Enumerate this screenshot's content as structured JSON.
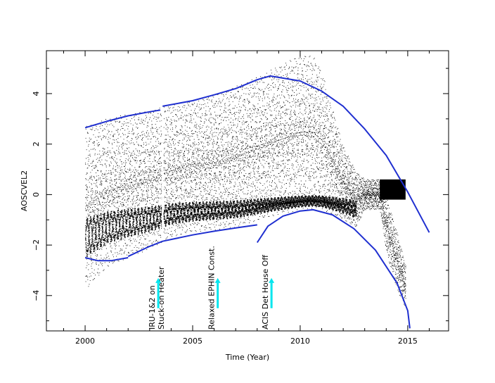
{
  "chart_data": {
    "type": "scatter",
    "title": "",
    "xlabel": "Time (Year)",
    "ylabel": "AOSCVEL2",
    "xlim": [
      1998.2,
      2016.9
    ],
    "ylim": [
      -5.4,
      5.7
    ],
    "xticks": [
      2000,
      2005,
      2010,
      2015
    ],
    "yticks": [
      -4,
      -2,
      0,
      2,
      4
    ],
    "grid": false,
    "legend": "none",
    "colors": {
      "points": "#000000",
      "fit_lines": "#1f2fd0",
      "markers": "#00e5ee",
      "gap": "#ffffff"
    },
    "scatter_envelope": [
      {
        "x": 2000.0,
        "upper": 2.7,
        "lower": -3.8
      },
      {
        "x": 2001.0,
        "upper": 3.0,
        "lower": -2.9
      },
      {
        "x": 2002.0,
        "upper": 3.2,
        "lower": -2.5
      },
      {
        "x": 2003.0,
        "upper": 3.35,
        "lower": -2.15
      },
      {
        "x": 2004.0,
        "upper": 3.55,
        "lower": -1.7
      },
      {
        "x": 2005.0,
        "upper": 3.75,
        "lower": -1.5
      },
      {
        "x": 2006.0,
        "upper": 3.95,
        "lower": -1.4
      },
      {
        "x": 2007.0,
        "upper": 4.3,
        "lower": -1.3
      },
      {
        "x": 2008.0,
        "upper": 4.65,
        "lower": -1.05
      },
      {
        "x": 2009.0,
        "upper": 5.1,
        "lower": -0.8
      },
      {
        "x": 2010.0,
        "upper": 5.55,
        "lower": -0.6
      },
      {
        "x": 2010.6,
        "upper": 5.5,
        "lower": -0.55
      },
      {
        "x": 2011.0,
        "upper": 4.9,
        "lower": -0.6
      },
      {
        "x": 2012.0,
        "upper": 1.9,
        "lower": -1.0
      },
      {
        "x": 2012.6,
        "upper": 0.9,
        "lower": -1.3
      },
      {
        "x": 2013.0,
        "upper": 0.6,
        "lower": -0.6
      },
      {
        "x": 2013.7,
        "upper": 0.6,
        "lower": -0.6
      },
      {
        "x": 2014.0,
        "upper": -0.1,
        "lower": -2.3
      },
      {
        "x": 2014.5,
        "upper": -1.5,
        "lower": -3.8
      },
      {
        "x": 2014.9,
        "upper": -2.8,
        "lower": -4.5
      }
    ],
    "data_gap_x": 2003.6,
    "late_block": {
      "x0": 2013.7,
      "x1": 2014.9,
      "y0": -0.2,
      "y1": 0.6
    },
    "fit_lines": [
      {
        "points": [
          [
            2000.0,
            2.65
          ],
          [
            2001.0,
            2.9
          ],
          [
            2002.0,
            3.12
          ],
          [
            2003.0,
            3.28
          ],
          [
            2003.5,
            3.35
          ]
        ]
      },
      {
        "points": [
          [
            2003.6,
            3.5
          ],
          [
            2005.0,
            3.72
          ],
          [
            2006.0,
            3.95
          ],
          [
            2007.0,
            4.2
          ],
          [
            2008.0,
            4.55
          ],
          [
            2008.6,
            4.7
          ]
        ]
      },
      {
        "points": [
          [
            2008.6,
            4.7
          ],
          [
            2010.0,
            4.5
          ],
          [
            2011.0,
            4.1
          ],
          [
            2012.0,
            3.5
          ],
          [
            2013.0,
            2.6
          ],
          [
            2014.0,
            1.55
          ],
          [
            2015.0,
            0.1
          ],
          [
            2016.0,
            -1.5
          ]
        ]
      },
      {
        "points": [
          [
            2000.0,
            -2.5
          ],
          [
            2000.6,
            -2.62
          ],
          [
            2001.2,
            -2.62
          ],
          [
            2002.0,
            -2.5
          ]
        ]
      },
      {
        "points": [
          [
            2002.0,
            -2.45
          ],
          [
            2003.0,
            -2.05
          ],
          [
            2003.6,
            -1.85
          ],
          [
            2005.0,
            -1.6
          ],
          [
            2006.0,
            -1.45
          ],
          [
            2007.0,
            -1.32
          ],
          [
            2008.0,
            -1.2
          ]
        ]
      },
      {
        "points": [
          [
            2008.0,
            -1.9
          ],
          [
            2008.5,
            -1.25
          ],
          [
            2009.2,
            -0.85
          ],
          [
            2010.0,
            -0.65
          ],
          [
            2010.6,
            -0.6
          ],
          [
            2011.5,
            -0.8
          ],
          [
            2012.5,
            -1.35
          ],
          [
            2013.5,
            -2.2
          ],
          [
            2014.5,
            -3.5
          ],
          [
            2015.0,
            -4.6
          ],
          [
            2015.1,
            -5.3
          ]
        ]
      }
    ],
    "annotations": [
      {
        "x": 2003.5,
        "lines": [
          "IRU-1&2 on",
          "Stuck-on Heater"
        ]
      },
      {
        "x": 2006.1,
        "lines": [
          "Relaxed EPHIN Const."
        ]
      },
      {
        "x": 2008.6,
        "lines": [
          "ACIS Det House Off"
        ]
      }
    ]
  }
}
